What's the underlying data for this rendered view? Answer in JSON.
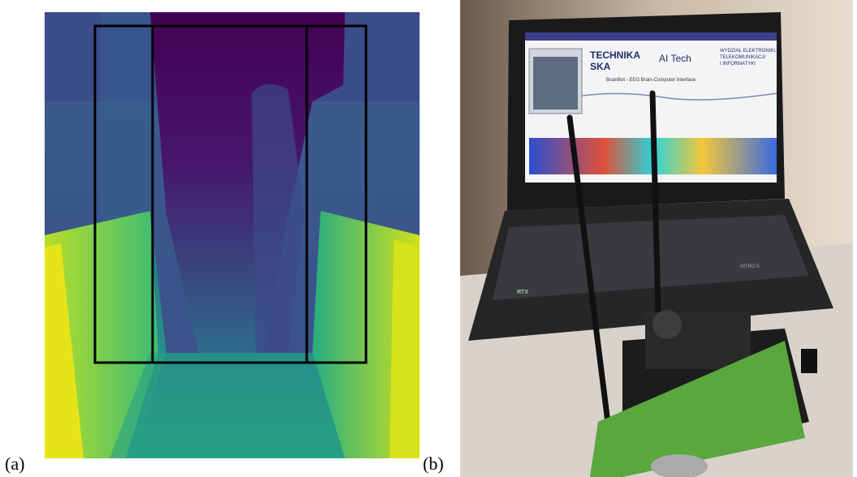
{
  "panels": [
    {
      "label": "(a)"
    },
    {
      "label": "(b)",
      "texts": [
        "TECHNIKA",
        "SKA",
        "AI Tech",
        "WYDZIAŁ ELEKTRONIKI,",
        "TELEKOMUNIKACJI",
        "I INFORMATYKI",
        "BrainBot - EEG Brain-Computer Interface",
        "NITRO 5",
        "RTX"
      ]
    }
  ]
}
